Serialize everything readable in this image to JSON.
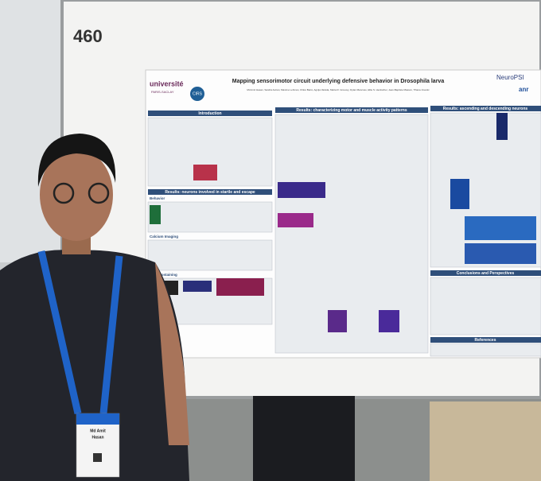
{
  "board_number": "460",
  "poster": {
    "logos": {
      "left": "université",
      "left_sub": "PARIS-SACLAY",
      "center": "CIRS",
      "right": "NeuroPSI",
      "right2": "anr"
    },
    "title": "Mapping sensorimotor circuit underlying defensive behavior in Drosophila larva",
    "authors": "Md Amit Hasan, Sandra Autran, Maxime Lehman, Chloé Barré, Agnija Vaisida, Marta R. Groovey, Dylan Mancuso, Ellie S. Heckscher, Jean-Baptiste Masson, Tihana Jovanic",
    "sections": {
      "introduction": "Introduction",
      "startle": "Results: neurons involved in startle and escape",
      "behavior": "Behavior",
      "calcium": "Calcium Imaging",
      "immuno": "Immunostaining",
      "motor": "Results: characterizing motor and muscle activity patterns",
      "ascending": "Results: ascending and descending neurons",
      "conclusions": "Conclusions and Perspectives",
      "references": "References"
    }
  },
  "badge": {
    "first": "Md Amit",
    "last": "Hasan"
  }
}
